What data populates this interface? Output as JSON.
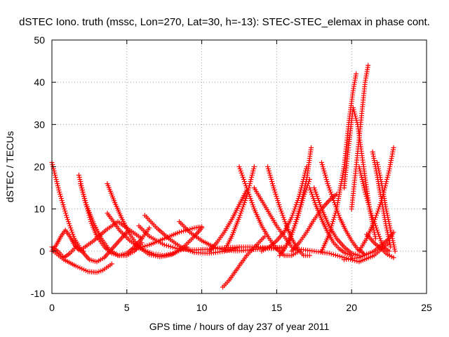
{
  "chart_data": {
    "type": "scatter",
    "title": "dSTEC Iono. truth (mssc, Lon=270, Lat=30, h=-13): STEC-STEC_elemax in phase cont.",
    "xlabel": "GPS time / hours of day 237 of year 2011",
    "ylabel": "dSTEC  / TECUs",
    "xlim": [
      0,
      25
    ],
    "ylim": [
      -10,
      50
    ],
    "xticks": [
      0,
      5,
      10,
      15,
      20,
      25
    ],
    "yticks": [
      -10,
      0,
      10,
      20,
      30,
      40,
      50
    ],
    "grid": true,
    "marker": "+",
    "series_color": "#ff0000",
    "series": [
      {
        "x": [
          0.0,
          0.5,
          1.0,
          1.5,
          2.0,
          2.5,
          3.0,
          3.5,
          4.0,
          4.5,
          5.0
        ],
        "y": [
          21,
          14,
          8,
          3,
          0,
          -2,
          -2.5,
          -1.5,
          0.5,
          2.5,
          4.5
        ]
      },
      {
        "x": [
          1.8,
          2.2,
          2.6,
          3.0,
          3.5,
          4.0,
          4.5,
          5.0,
          5.5,
          6.0,
          6.5
        ],
        "y": [
          18,
          12,
          7,
          3.5,
          1,
          -0.5,
          -1,
          -0.5,
          1,
          3,
          5.5
        ]
      },
      {
        "x": [
          1.9,
          2.3,
          2.8,
          3.3,
          3.8,
          4.4,
          5.0,
          5.5,
          6.0
        ],
        "y": [
          16,
          11,
          6.5,
          3,
          0.5,
          -1,
          -1,
          0,
          2
        ]
      },
      {
        "x": [
          3.7,
          4.2,
          4.7,
          5.2,
          5.8,
          6.5,
          7.2,
          8.0,
          8.8,
          9.5,
          10.0
        ],
        "y": [
          16,
          11.5,
          7.5,
          4,
          1,
          -0.8,
          -1.3,
          -0.8,
          1,
          3.5,
          5.5
        ]
      },
      {
        "x": [
          3.7,
          4.5,
          5.2,
          6.0,
          6.8,
          7.5,
          8.2,
          9.0
        ],
        "y": [
          9,
          5,
          2.5,
          0.5,
          -0.7,
          -1,
          -0.4,
          1
        ]
      },
      {
        "x": [
          6.2,
          7.0,
          7.8,
          8.6,
          9.5,
          10.5,
          11.5,
          12.5
        ],
        "y": [
          8.5,
          5.5,
          3,
          1,
          -0.3,
          -0.5,
          0,
          1
        ]
      },
      {
        "x": [
          5.8,
          6.5,
          7.5,
          8.5,
          9.5,
          10.5,
          11.5,
          12.5,
          13.5,
          14.5,
          15.5
        ],
        "y": [
          6,
          3.5,
          1.5,
          0.5,
          0.3,
          0.5,
          0.8,
          1,
          1,
          0.8,
          0.5
        ]
      },
      {
        "x": [
          8.5,
          9.2,
          10.0,
          10.8,
          11.6,
          12.4,
          13.2,
          14.0,
          14.8,
          15.6
        ],
        "y": [
          7,
          4.5,
          2.5,
          1,
          0.2,
          0.1,
          0.3,
          0.6,
          0.8,
          1
        ]
      },
      {
        "x": [
          0.0,
          0.4,
          0.8,
          1.2,
          1.6
        ],
        "y": [
          1,
          0,
          -1.5,
          -0.5,
          1
        ]
      },
      {
        "x": [
          0.0,
          0.3,
          0.6,
          0.9,
          1.2,
          1.5,
          1.8,
          2.1
        ],
        "y": [
          0,
          1.5,
          3.5,
          5,
          3.5,
          1.5,
          0.3,
          0
        ]
      },
      {
        "x": [
          0.1,
          0.8,
          1.6,
          2.4,
          3.0,
          3.4,
          4.0
        ],
        "y": [
          0,
          -2,
          -3.5,
          -4.8,
          -5,
          -4.5,
          -3
        ]
      },
      {
        "x": [
          2.0,
          2.8,
          3.6,
          4.4,
          5.2,
          6.0
        ],
        "y": [
          0.5,
          2.5,
          5,
          7,
          5,
          3
        ]
      },
      {
        "x": [
          5.5,
          6.5,
          7.5,
          8.5,
          9.5,
          10.0
        ],
        "y": [
          0.5,
          1.5,
          3,
          4.5,
          5.5,
          5.8
        ]
      },
      {
        "x": [
          11.4,
          11.8,
          12.2,
          12.6,
          13.0,
          13.4,
          13.8,
          14.2
        ],
        "y": [
          -8.5,
          -7,
          -5,
          -3,
          -1,
          0.5,
          2,
          3.5
        ]
      },
      {
        "x": [
          10.5,
          11.0,
          11.5,
          12.0,
          12.5,
          13.0
        ],
        "y": [
          0,
          2,
          4.5,
          7.5,
          11,
          14.5
        ]
      },
      {
        "x": [
          11.5,
          12.0,
          12.5,
          13.0,
          13.5
        ],
        "y": [
          0,
          3.5,
          8,
          13,
          20
        ]
      },
      {
        "x": [
          12.5,
          13.0,
          13.5,
          14.0,
          14.5,
          15.0,
          15.5,
          16.0,
          16.5
        ],
        "y": [
          20,
          15,
          10,
          6,
          3,
          0.5,
          -1,
          -1,
          0
        ]
      },
      {
        "x": [
          14.4,
          14.8,
          15.2,
          15.6,
          16.0,
          16.4,
          16.8,
          17.2
        ],
        "y": [
          20,
          15,
          10.5,
          6.5,
          3,
          0.5,
          -1,
          -1
        ]
      },
      {
        "x": [
          13.5,
          14.0,
          14.5,
          15.0,
          15.5,
          16.0,
          16.5
        ],
        "y": [
          15,
          12,
          9,
          6,
          3.5,
          1,
          0
        ]
      },
      {
        "x": [
          14.0,
          14.5,
          15.0,
          15.5,
          16.0,
          16.5,
          17.0
        ],
        "y": [
          0,
          1,
          2.5,
          4.5,
          8,
          13,
          20
        ]
      },
      {
        "x": [
          15.2,
          15.6,
          16.0,
          16.4,
          16.8,
          17.2
        ],
        "y": [
          -1,
          1,
          4,
          8,
          13,
          17
        ]
      },
      {
        "x": [
          15.8,
          16.2,
          16.6,
          17.0,
          17.3
        ],
        "y": [
          2,
          6,
          11,
          17,
          24.5
        ]
      },
      {
        "x": [
          16.0,
          16.5,
          17.0,
          17.5,
          18.0,
          18.5,
          19.0
        ],
        "y": [
          0,
          2,
          4.5,
          7.5,
          10,
          12,
          13.5
        ]
      },
      {
        "x": [
          17.2,
          17.6,
          18.0,
          18.4,
          18.8,
          19.2,
          19.6,
          20.0
        ],
        "y": [
          15,
          11,
          7.5,
          4.5,
          2,
          0.5,
          -0.5,
          -1
        ]
      },
      {
        "x": [
          17.5,
          18.0,
          18.5,
          19.0,
          19.5,
          20.0,
          20.5
        ],
        "y": [
          15,
          10,
          6,
          3,
          1,
          -0.5,
          -1
        ]
      },
      {
        "x": [
          18.0,
          18.4,
          18.8,
          19.2,
          19.6,
          20.0,
          20.4,
          20.8
        ],
        "y": [
          21,
          16,
          12,
          8,
          5,
          2.5,
          0.5,
          -0.5
        ]
      },
      {
        "x": [
          16.5,
          17.5,
          18.5,
          19.5,
          20.5,
          21.5,
          22.5
        ],
        "y": [
          0.5,
          0,
          -0.5,
          -1.5,
          -2.5,
          -1,
          2
        ]
      },
      {
        "x": [
          18.0,
          18.5,
          19.0,
          19.5,
          19.8,
          20.1,
          20.3
        ],
        "y": [
          0,
          4,
          10,
          20,
          30,
          38,
          42
        ]
      },
      {
        "x": [
          19.5,
          19.8,
          20.1,
          20.4,
          20.8,
          21.2,
          21.6
        ],
        "y": [
          15,
          25,
          34,
          30,
          20,
          10,
          3
        ]
      },
      {
        "x": [
          20.0,
          20.3,
          20.6,
          20.9,
          21.1
        ],
        "y": [
          10,
          20,
          30,
          40,
          44
        ]
      },
      {
        "x": [
          20.5,
          20.9,
          21.3,
          21.7,
          22.1,
          22.5
        ],
        "y": [
          20,
          14,
          9,
          5,
          1,
          0
        ]
      },
      {
        "x": [
          21.4,
          21.7,
          22.0,
          22.3,
          22.6
        ],
        "y": [
          23.5,
          18,
          12,
          6,
          1
        ]
      },
      {
        "x": [
          21.7,
          22.0,
          22.3,
          22.6,
          22.9
        ],
        "y": [
          21,
          16,
          10,
          5,
          0
        ]
      },
      {
        "x": [
          20.5,
          21.0,
          21.5,
          22.0,
          22.5,
          22.8
        ],
        "y": [
          0,
          3,
          7,
          12,
          19,
          24.5
        ]
      },
      {
        "x": [
          19.5,
          20.5,
          21.5,
          22.0,
          22.5,
          22.8
        ],
        "y": [
          -2,
          -1.5,
          0,
          1.5,
          3,
          4.5
        ]
      },
      {
        "x": [
          21.0,
          21.5,
          22.0,
          22.4,
          22.8
        ],
        "y": [
          4,
          2,
          0.5,
          -0.8,
          -1.5
        ]
      }
    ]
  }
}
